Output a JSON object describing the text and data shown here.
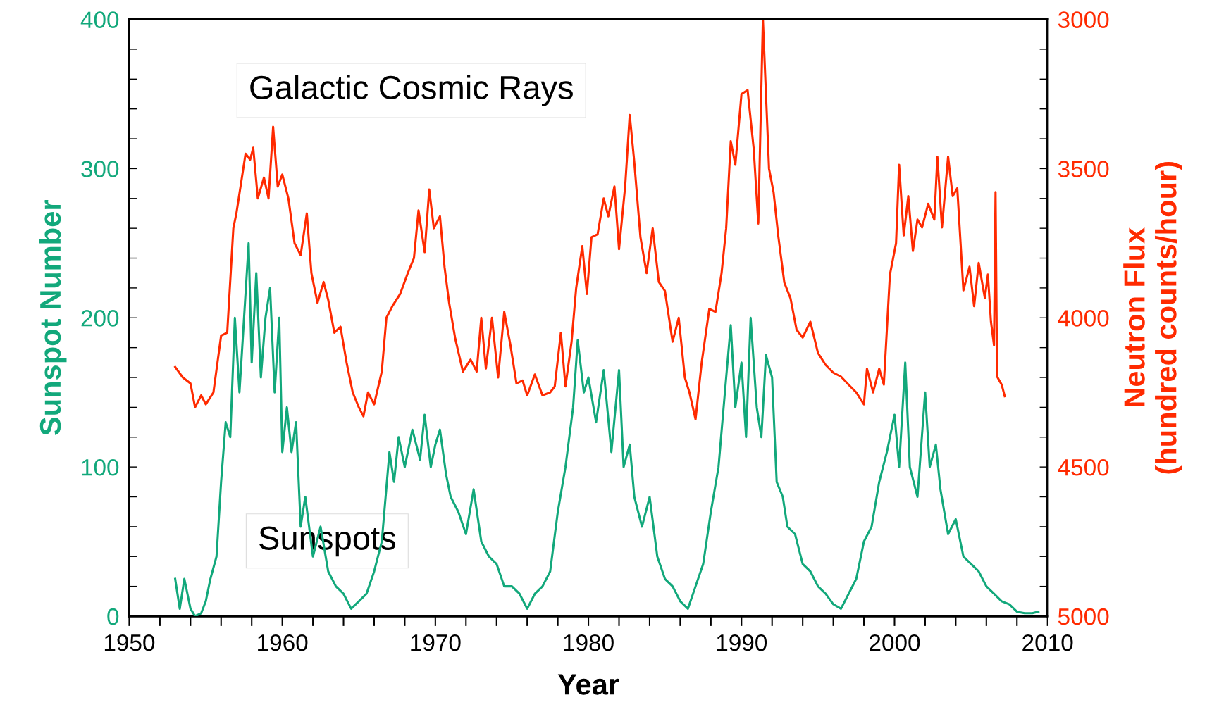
{
  "chart_data": {
    "type": "line",
    "xlabel": "Year",
    "ylabel": "Sunspot Number",
    "y2label": "Neutron Flux\n(hundred counts/hour)",
    "xlim": [
      1950,
      2010
    ],
    "xticks": [
      1950,
      {
        "value": 1952,
        "label": null
      },
      {
        "value": 1954,
        "label": null
      },
      {
        "value": 1956,
        "label": null
      },
      {
        "value": 1958,
        "label": null
      },
      1960,
      {
        "value": 1962,
        "label": null
      },
      {
        "value": 1964,
        "label": null
      },
      {
        "value": 1966,
        "label": null
      },
      {
        "value": 1968,
        "label": null
      },
      1970,
      {
        "value": 1972,
        "label": null
      },
      {
        "value": 1974,
        "label": null
      },
      {
        "value": 1976,
        "label": null
      },
      {
        "value": 1978,
        "label": null
      },
      1980,
      {
        "value": 1982,
        "label": null
      },
      {
        "value": 1984,
        "label": null
      },
      {
        "value": 1986,
        "label": null
      },
      {
        "value": 1988,
        "label": null
      },
      1990,
      {
        "value": 1992,
        "label": null
      },
      {
        "value": 1994,
        "label": null
      },
      {
        "value": 1996,
        "label": null
      },
      {
        "value": 1998,
        "label": null
      },
      2000,
      {
        "value": 2002,
        "label": null
      },
      {
        "value": 2004,
        "label": null
      },
      {
        "value": 2006,
        "label": null
      },
      {
        "value": 2008,
        "label": null
      },
      2010
    ],
    "ylim": [
      0,
      400
    ],
    "yticks": [
      0,
      {
        "value": 20,
        "label": null
      },
      {
        "value": 40,
        "label": null
      },
      {
        "value": 60,
        "label": null
      },
      {
        "value": 80,
        "label": null
      },
      100,
      {
        "value": 120,
        "label": null
      },
      {
        "value": 140,
        "label": null
      },
      {
        "value": 160,
        "label": null
      },
      {
        "value": 180,
        "label": null
      },
      200,
      {
        "value": 220,
        "label": null
      },
      {
        "value": 240,
        "label": null
      },
      {
        "value": 260,
        "label": null
      },
      {
        "value": 280,
        "label": null
      },
      300,
      {
        "value": 320,
        "label": null
      },
      {
        "value": 340,
        "label": null
      },
      {
        "value": 360,
        "label": null
      },
      {
        "value": 380,
        "label": null
      },
      400
    ],
    "y2lim": [
      5000,
      3000
    ],
    "y2ticks": [
      3000,
      {
        "value": 3100,
        "label": null
      },
      {
        "value": 3200,
        "label": null
      },
      {
        "value": 3300,
        "label": null
      },
      {
        "value": 3400,
        "label": null
      },
      3500,
      {
        "value": 3600,
        "label": null
      },
      {
        "value": 3700,
        "label": null
      },
      {
        "value": 3800,
        "label": null
      },
      {
        "value": 3900,
        "label": null
      },
      4000,
      {
        "value": 4100,
        "label": null
      },
      {
        "value": 4200,
        "label": null
      },
      {
        "value": 4300,
        "label": null
      },
      {
        "value": 4400,
        "label": null
      },
      4500,
      {
        "value": 4600,
        "label": null
      },
      {
        "value": 4700,
        "label": null
      },
      {
        "value": 4800,
        "label": null
      },
      {
        "value": 4900,
        "label": null
      },
      5000
    ],
    "grid": false,
    "legend": false,
    "marker": "none",
    "line_style": "solid",
    "series": [
      {
        "name": "Galactic Cosmic Rays",
        "color": "#ff2a00",
        "axis": "y2",
        "x": [
          1953.0,
          1953.5,
          1954.0,
          1954.3,
          1954.7,
          1955.0,
          1955.5,
          1956.0,
          1956.4,
          1956.8,
          1957.0,
          1957.3,
          1957.6,
          1957.9,
          1958.1,
          1958.4,
          1958.8,
          1959.1,
          1959.4,
          1959.7,
          1960.0,
          1960.4,
          1960.8,
          1961.2,
          1961.6,
          1961.9,
          1962.3,
          1962.7,
          1963.0,
          1963.4,
          1963.8,
          1964.2,
          1964.6,
          1965.0,
          1965.3,
          1965.6,
          1966.0,
          1966.5,
          1966.8,
          1967.2,
          1967.7,
          1968.2,
          1968.6,
          1968.9,
          1969.3,
          1969.6,
          1969.9,
          1970.3,
          1970.6,
          1970.9,
          1971.3,
          1971.8,
          1972.3,
          1972.7,
          1973.0,
          1973.3,
          1973.7,
          1974.1,
          1974.5,
          1974.9,
          1975.3,
          1975.7,
          1976.0,
          1976.5,
          1977.0,
          1977.5,
          1977.8,
          1978.2,
          1978.5,
          1978.9,
          1979.2,
          1979.6,
          1979.9,
          1980.2,
          1980.6,
          1981.0,
          1981.3,
          1981.7,
          1982.0,
          1982.4,
          1982.7,
          1983.0,
          1983.4,
          1983.8,
          1984.2,
          1984.6,
          1985.0,
          1985.5,
          1985.9,
          1986.3,
          1986.6,
          1987.0,
          1987.4,
          1987.9,
          1988.3,
          1988.7,
          1989.0,
          1989.3,
          1989.6,
          1990.0,
          1990.4,
          1990.8,
          1991.1,
          1991.4,
          1991.8,
          1992.1,
          1992.4,
          1992.8,
          1993.2,
          1993.6,
          1994.0,
          1994.5,
          1995.0,
          1995.5,
          1996.0,
          1996.5,
          1997.0,
          1997.5,
          1998.0,
          1998.2,
          1998.6,
          1999.0,
          1999.3,
          1999.7,
          2000.1,
          2000.3,
          2000.6,
          2000.9,
          2001.2,
          2001.5,
          2001.8,
          2002.2,
          2002.6,
          2002.8,
          2003.1,
          2003.5,
          2003.8,
          2004.1,
          2004.5,
          2004.9,
          2005.2,
          2005.5,
          2005.9,
          2006.1,
          2006.3,
          2006.5,
          2006.6,
          2006.7,
          2007.0,
          2007.2
        ],
        "values": [
          4165,
          4200,
          4220,
          4300,
          4260,
          4290,
          4250,
          4060,
          4050,
          3700,
          3650,
          3550,
          3450,
          3470,
          3430,
          3600,
          3530,
          3600,
          3360,
          3560,
          3520,
          3600,
          3750,
          3790,
          3650,
          3850,
          3950,
          3880,
          3940,
          4050,
          4030,
          4150,
          4250,
          4300,
          4330,
          4250,
          4290,
          4180,
          4000,
          3960,
          3920,
          3850,
          3800,
          3640,
          3780,
          3570,
          3700,
          3660,
          3830,
          3950,
          4070,
          4180,
          4140,
          4180,
          4000,
          4170,
          4000,
          4200,
          3980,
          4090,
          4220,
          4210,
          4260,
          4190,
          4260,
          4250,
          4230,
          4050,
          4230,
          4080,
          3900,
          3760,
          3920,
          3730,
          3720,
          3600,
          3660,
          3560,
          3770,
          3560,
          3320,
          3480,
          3730,
          3850,
          3700,
          3880,
          3910,
          4080,
          4000,
          4200,
          4250,
          4340,
          4150,
          3970,
          3980,
          3850,
          3700,
          3408,
          3487,
          3250,
          3237,
          3434,
          3684,
          3000,
          3500,
          3580,
          3724,
          3882,
          3934,
          4040,
          4066,
          4013,
          4118,
          4158,
          4184,
          4197,
          4224,
          4250,
          4290,
          4171,
          4250,
          4171,
          4224,
          3855,
          3750,
          3487,
          3724,
          3592,
          3776,
          3671,
          3697,
          3618,
          3671,
          3460,
          3697,
          3460,
          3592,
          3566,
          3908,
          3829,
          3961,
          3816,
          3934,
          3855,
          4013,
          4092,
          3579,
          4197,
          4224,
          4263
        ]
      },
      {
        "name": "Sunspots",
        "color": "#12a87b",
        "axis": "y",
        "x": [
          1953.0,
          1953.3,
          1953.6,
          1954.0,
          1954.3,
          1954.7,
          1955.0,
          1955.3,
          1955.7,
          1956.0,
          1956.3,
          1956.6,
          1956.9,
          1957.2,
          1957.5,
          1957.8,
          1958.0,
          1958.3,
          1958.6,
          1958.9,
          1959.2,
          1959.5,
          1959.8,
          1960.0,
          1960.3,
          1960.6,
          1960.9,
          1961.2,
          1961.5,
          1962.0,
          1962.5,
          1963.0,
          1963.5,
          1964.0,
          1964.5,
          1965.0,
          1965.5,
          1966.0,
          1966.5,
          1967.0,
          1967.3,
          1967.6,
          1968.0,
          1968.5,
          1969.0,
          1969.3,
          1969.7,
          1970.0,
          1970.3,
          1970.7,
          1971.0,
          1971.5,
          1972.0,
          1972.5,
          1973.0,
          1973.5,
          1974.0,
          1974.5,
          1975.0,
          1975.5,
          1976.0,
          1976.5,
          1977.0,
          1977.5,
          1978.0,
          1978.5,
          1979.0,
          1979.3,
          1979.7,
          1980.0,
          1980.5,
          1981.0,
          1981.5,
          1982.0,
          1982.3,
          1982.7,
          1983.0,
          1983.5,
          1984.0,
          1984.5,
          1985.0,
          1985.5,
          1986.0,
          1986.5,
          1987.0,
          1987.5,
          1988.0,
          1988.5,
          1989.0,
          1989.3,
          1989.6,
          1990.0,
          1990.3,
          1990.6,
          1991.0,
          1991.3,
          1991.6,
          1992.0,
          1992.3,
          1992.7,
          1993.0,
          1993.5,
          1994.0,
          1994.5,
          1995.0,
          1995.5,
          1996.0,
          1996.5,
          1997.0,
          1997.5,
          1998.0,
          1998.5,
          1999.0,
          1999.5,
          2000.0,
          2000.3,
          2000.7,
          2001.0,
          2001.5,
          2002.0,
          2002.3,
          2002.7,
          2003.0,
          2003.5,
          2004.0,
          2004.5,
          2005.0,
          2005.5,
          2006.0,
          2006.5,
          2007.0,
          2007.5,
          2008.0,
          2008.5,
          2009.0,
          2009.4
        ],
        "values": [
          25,
          5,
          25,
          5,
          0,
          2,
          10,
          25,
          40,
          90,
          130,
          120,
          200,
          150,
          200,
          250,
          170,
          230,
          160,
          200,
          220,
          150,
          200,
          110,
          140,
          110,
          130,
          60,
          80,
          40,
          60,
          30,
          20,
          15,
          5,
          10,
          15,
          30,
          50,
          110,
          90,
          120,
          100,
          125,
          105,
          135,
          100,
          115,
          125,
          95,
          80,
          70,
          55,
          85,
          50,
          40,
          35,
          20,
          20,
          15,
          5,
          15,
          20,
          30,
          70,
          100,
          140,
          185,
          150,
          160,
          130,
          165,
          110,
          165,
          100,
          115,
          80,
          60,
          80,
          40,
          25,
          20,
          10,
          5,
          20,
          35,
          70,
          100,
          160,
          195,
          140,
          170,
          120,
          200,
          140,
          120,
          175,
          160,
          90,
          80,
          60,
          55,
          35,
          30,
          20,
          15,
          8,
          5,
          15,
          25,
          50,
          60,
          90,
          110,
          135,
          100,
          170,
          100,
          80,
          150,
          100,
          115,
          85,
          55,
          65,
          40,
          35,
          30,
          20,
          15,
          10,
          8,
          3,
          2,
          2,
          3
        ]
      }
    ]
  }
}
